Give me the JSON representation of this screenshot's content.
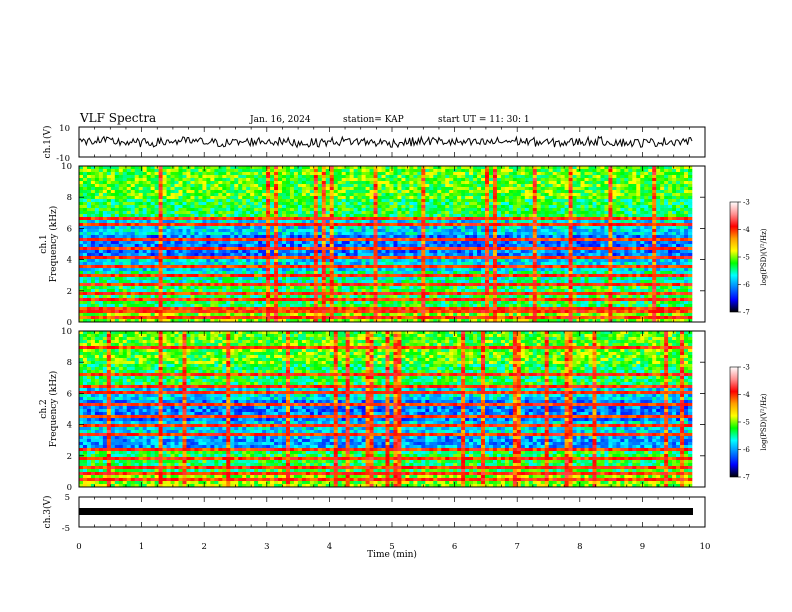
{
  "header": {
    "title": "VLF Spectra",
    "date": "Jan. 16, 2024",
    "station": "station= KAP",
    "start": "start  UT =  11: 30: 1"
  },
  "panels": {
    "ch1v": {
      "ylabel": "ch.1(V)",
      "ticks": [
        "10",
        "-10"
      ]
    },
    "spec1": {
      "ylabel_top": "ch.1",
      "ylabel_bottom": "Frequency (kHz)"
    },
    "spec2": {
      "ylabel_top": "ch.2",
      "ylabel_bottom": "Frequency (kHz)"
    },
    "ch3v": {
      "ylabel": "ch.3(V)",
      "ticks": [
        "5",
        "-5"
      ]
    }
  },
  "colorbar": {
    "label": "log(PSD)(V²/Hz)",
    "ticks": [
      "-3",
      "-4",
      "-5",
      "-6",
      "-7"
    ],
    "stops": [
      "#ffffff",
      "#ff9090",
      "#ff0000",
      "#ffa000",
      "#ffff00",
      "#00ff00",
      "#00ffff",
      "#0080ff",
      "#0000ff",
      "#000000"
    ]
  },
  "chart_data": {
    "type": "heatmap",
    "title": "VLF Spectra",
    "xlabel": "Time (min)",
    "x_ticks": [
      0,
      1,
      2,
      3,
      4,
      5,
      6,
      7,
      8,
      9,
      10
    ],
    "xlim": [
      0,
      10
    ],
    "spectrogram_ylabel": "Frequency (kHz)",
    "freq_ticks": [
      0,
      2,
      4,
      6,
      8,
      10
    ],
    "ylim_khz": [
      0,
      10
    ],
    "color_range_log_psd": [
      -7,
      -3
    ],
    "ch1_waveform": {
      "ylim": [
        -10,
        10
      ],
      "approx_range": [
        -5,
        6
      ]
    },
    "ch3_waveform": {
      "ylim": [
        -5,
        5
      ],
      "approx_value": -1
    },
    "ch1_persistent_bands_khz": [
      0.2,
      0.5,
      0.8,
      1.3,
      1.8,
      2.3,
      2.9,
      3.6,
      4.1,
      4.8,
      5.3,
      6.2,
      6.7
    ],
    "ch2_persistent_bands_khz": [
      0.3,
      0.7,
      1.2,
      1.8,
      2.4,
      3.3,
      3.9,
      4.6,
      5.3,
      6.0,
      6.5,
      7.3,
      9.1
    ]
  }
}
